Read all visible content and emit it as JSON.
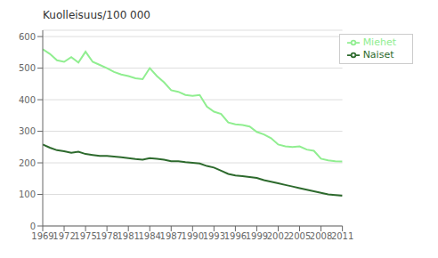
{
  "chart_data": {
    "type": "line",
    "ylabel": "Kuolleisuus/100 000",
    "x": [
      1969,
      1970,
      1971,
      1972,
      1973,
      1974,
      1975,
      1976,
      1977,
      1978,
      1979,
      1980,
      1981,
      1982,
      1983,
      1984,
      1985,
      1986,
      1987,
      1988,
      1989,
      1990,
      1991,
      1992,
      1993,
      1994,
      1995,
      1996,
      1997,
      1998,
      1999,
      2000,
      2001,
      2002,
      2003,
      2004,
      2005,
      2006,
      2007,
      2008,
      2009,
      2010,
      2011
    ],
    "series": [
      {
        "name": "Miehet",
        "color": "#90EE90",
        "values": [
          560,
          545,
          525,
          520,
          535,
          518,
          552,
          520,
          510,
          500,
          488,
          480,
          475,
          468,
          465,
          500,
          475,
          455,
          430,
          425,
          415,
          412,
          415,
          378,
          362,
          355,
          328,
          322,
          320,
          315,
          298,
          290,
          278,
          258,
          252,
          250,
          252,
          242,
          238,
          213,
          208,
          205,
          204
        ]
      },
      {
        "name": "Naiset",
        "color": "#2d6a2d",
        "values": [
          258,
          248,
          240,
          237,
          232,
          235,
          228,
          225,
          222,
          222,
          220,
          218,
          215,
          212,
          210,
          215,
          213,
          210,
          205,
          205,
          202,
          200,
          198,
          190,
          185,
          175,
          165,
          160,
          158,
          155,
          152,
          145,
          140,
          135,
          130,
          125,
          120,
          115,
          110,
          105,
          100,
          98,
          96
        ]
      }
    ],
    "xlim": [
      1969,
      2011
    ],
    "xticks": [
      1969,
      1972,
      1975,
      1978,
      1981,
      1984,
      1987,
      1990,
      1993,
      1996,
      1999,
      2002,
      2005,
      2008,
      2011
    ],
    "ylim": [
      0,
      620
    ],
    "yticks": [
      0,
      100,
      200,
      300,
      400,
      500,
      600
    ],
    "grid": "y",
    "legend": "upper right"
  }
}
